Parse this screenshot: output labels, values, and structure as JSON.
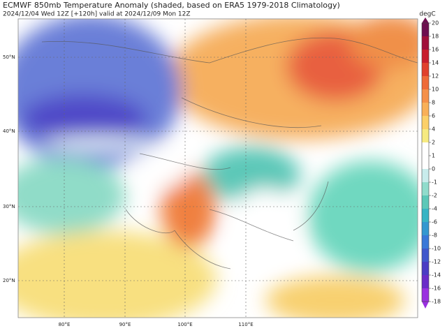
{
  "header": {
    "title": "ECMWF 850mb Temperature Anomaly (shaded, based on ERA5 1979-2018 Climatology)",
    "subtitle": "2024/12/04 Wed 12Z [+120h] valid at 2024/12/09 Mon 12Z"
  },
  "colorbar": {
    "label": "degC",
    "ticks": [
      20,
      18,
      16,
      14,
      12,
      10,
      8,
      6,
      4,
      2,
      1,
      0,
      -1,
      -2,
      -4,
      -6,
      -8,
      -10,
      -12,
      -14,
      -16,
      -18
    ],
    "colors": [
      "#6d0e4f",
      "#a0103a",
      "#c81e2c",
      "#e0402c",
      "#ee6a38",
      "#f59048",
      "#f9b058",
      "#fcd068",
      "#f6ea80",
      "#ffffff",
      "#ffffff",
      "#c8ecec",
      "#90dccc",
      "#5cc8b8",
      "#38b4c4",
      "#3498d0",
      "#3a78d8",
      "#4058cc",
      "#4a3cc4",
      "#6a2cc8",
      "#9a30e0"
    ]
  },
  "lat_labels": [
    "50°N",
    "40°N",
    "30°N",
    "20°N"
  ],
  "lon_labels": [
    "80°E",
    "90°E",
    "100°E",
    "110°E"
  ]
}
